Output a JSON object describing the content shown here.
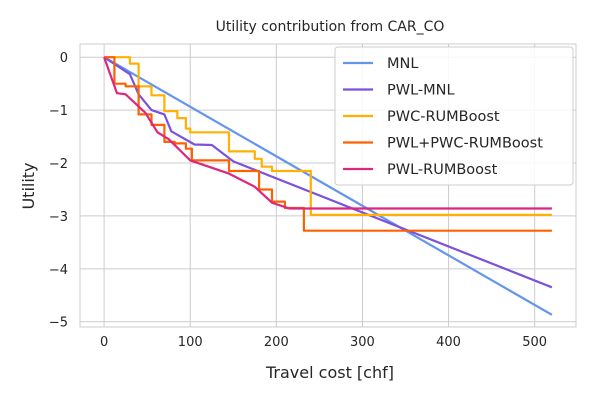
{
  "chart_data": {
    "type": "line",
    "title": "Utility contribution from CAR_CO",
    "xlabel": "Travel cost [chf]",
    "ylabel": "Utility",
    "xlim": [
      -28,
      548
    ],
    "ylim": [
      -5.1,
      0.25
    ],
    "xticks": [
      0,
      100,
      200,
      300,
      400,
      500
    ],
    "yticks": [
      0,
      -1,
      -2,
      -3,
      -4,
      -5
    ],
    "xtick_labels": [
      "0",
      "100",
      "200",
      "300",
      "400",
      "500"
    ],
    "ytick_labels": [
      "0",
      "−1",
      "−2",
      "−3",
      "−4",
      "−5"
    ],
    "grid": true,
    "legend_position": "top-right",
    "series": [
      {
        "name": "MNL",
        "color": "#6495ed",
        "step": false,
        "points": [
          [
            0,
            0
          ],
          [
            520,
            -4.87
          ]
        ]
      },
      {
        "name": "PWL-MNL",
        "color": "#7b52db",
        "step": false,
        "points": [
          [
            0,
            0
          ],
          [
            30,
            -0.32
          ],
          [
            40,
            -0.7
          ],
          [
            55,
            -1.0
          ],
          [
            70,
            -1.08
          ],
          [
            78,
            -1.4
          ],
          [
            105,
            -1.65
          ],
          [
            125,
            -1.66
          ],
          [
            150,
            -1.97
          ],
          [
            520,
            -4.35
          ]
        ]
      },
      {
        "name": "PWC-RUMBoost",
        "color": "#ffb000",
        "step": true,
        "points": [
          [
            0,
            0
          ],
          [
            30,
            -0.12
          ],
          [
            40,
            -0.55
          ],
          [
            55,
            -0.72
          ],
          [
            70,
            -1.02
          ],
          [
            85,
            -1.15
          ],
          [
            95,
            -1.35
          ],
          [
            100,
            -1.42
          ],
          [
            145,
            -1.78
          ],
          [
            175,
            -1.92
          ],
          [
            183,
            -2.07
          ],
          [
            195,
            -2.15
          ],
          [
            240,
            -2.98
          ],
          [
            520,
            -2.98
          ]
        ]
      },
      {
        "name": "PWL+PWC-RUMBoost",
        "color": "#fe6100",
        "step": true,
        "points": [
          [
            0,
            0
          ],
          [
            12,
            -0.5
          ],
          [
            25,
            -0.55
          ],
          [
            40,
            -1.08
          ],
          [
            55,
            -1.28
          ],
          [
            70,
            -1.6
          ],
          [
            82,
            -1.63
          ],
          [
            95,
            -1.73
          ],
          [
            102,
            -1.95
          ],
          [
            145,
            -2.15
          ],
          [
            180,
            -2.5
          ],
          [
            195,
            -2.73
          ],
          [
            210,
            -2.85
          ],
          [
            232,
            -3.28
          ],
          [
            520,
            -3.28
          ]
        ]
      },
      {
        "name": "PWL-RUMBoost",
        "color": "#dc267f",
        "step": false,
        "points": [
          [
            0,
            0
          ],
          [
            15,
            -0.68
          ],
          [
            25,
            -0.7
          ],
          [
            48,
            -1.05
          ],
          [
            62,
            -1.42
          ],
          [
            75,
            -1.55
          ],
          [
            100,
            -1.95
          ],
          [
            145,
            -2.2
          ],
          [
            175,
            -2.45
          ],
          [
            195,
            -2.75
          ],
          [
            215,
            -2.86
          ],
          [
            520,
            -2.86
          ]
        ]
      }
    ]
  }
}
